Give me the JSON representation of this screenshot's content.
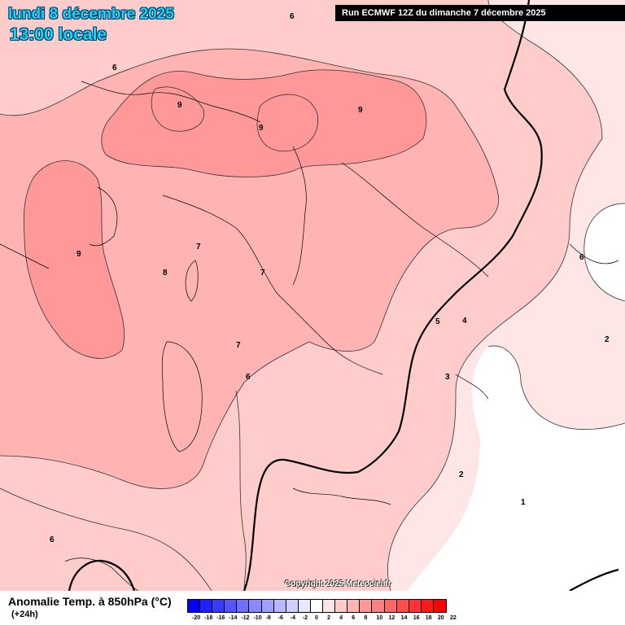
{
  "header": {
    "date_line": "lundi 8 décembre 2025",
    "time_line": "13:00 locale",
    "run_info": "Run ECMWF 12Z du dimanche 7 décembre 2025"
  },
  "footer": {
    "copyright": "Copyright 2025 Meteociel.fr",
    "legend_title": "Anomalie Temp. à 850hPa (°C)",
    "legend_subtitle": "(+24h)"
  },
  "legend": {
    "ticks": [
      "-20",
      "-18",
      "-16",
      "-14",
      "-12",
      "-10",
      "-8",
      "-6",
      "-4",
      "-2",
      "0",
      "2",
      "4",
      "6",
      "8",
      "10",
      "12",
      "14",
      "16",
      "18",
      "20",
      "22"
    ],
    "colors": [
      "#0000ff",
      "#2020ff",
      "#3a3aff",
      "#5555ff",
      "#6e6eff",
      "#8888ff",
      "#a0a0ff",
      "#b8b8ff",
      "#d0d0ff",
      "#e8e8ff",
      "#ffffff",
      "#ffe6e6",
      "#ffcccc",
      "#ffb3b3",
      "#ff9999",
      "#ff8080",
      "#ff6666",
      "#ff4d4d",
      "#ff3333",
      "#ff1a1a",
      "#ff0000"
    ]
  },
  "map": {
    "contour_labels": [
      "6",
      "6",
      "9",
      "9",
      "9",
      "9",
      "7",
      "8",
      "7",
      "7",
      "6",
      "5",
      "4",
      "3",
      "2",
      "2",
      "1",
      "6",
      "6"
    ],
    "colors": {
      "anom_0_2": "#ffffff",
      "anom_2_4": "#ffe6e6",
      "anom_4_6": "#ffcccc",
      "anom_6_8": "#ffb3b3",
      "anom_8_10": "#ff9999",
      "border": "#000000"
    }
  }
}
